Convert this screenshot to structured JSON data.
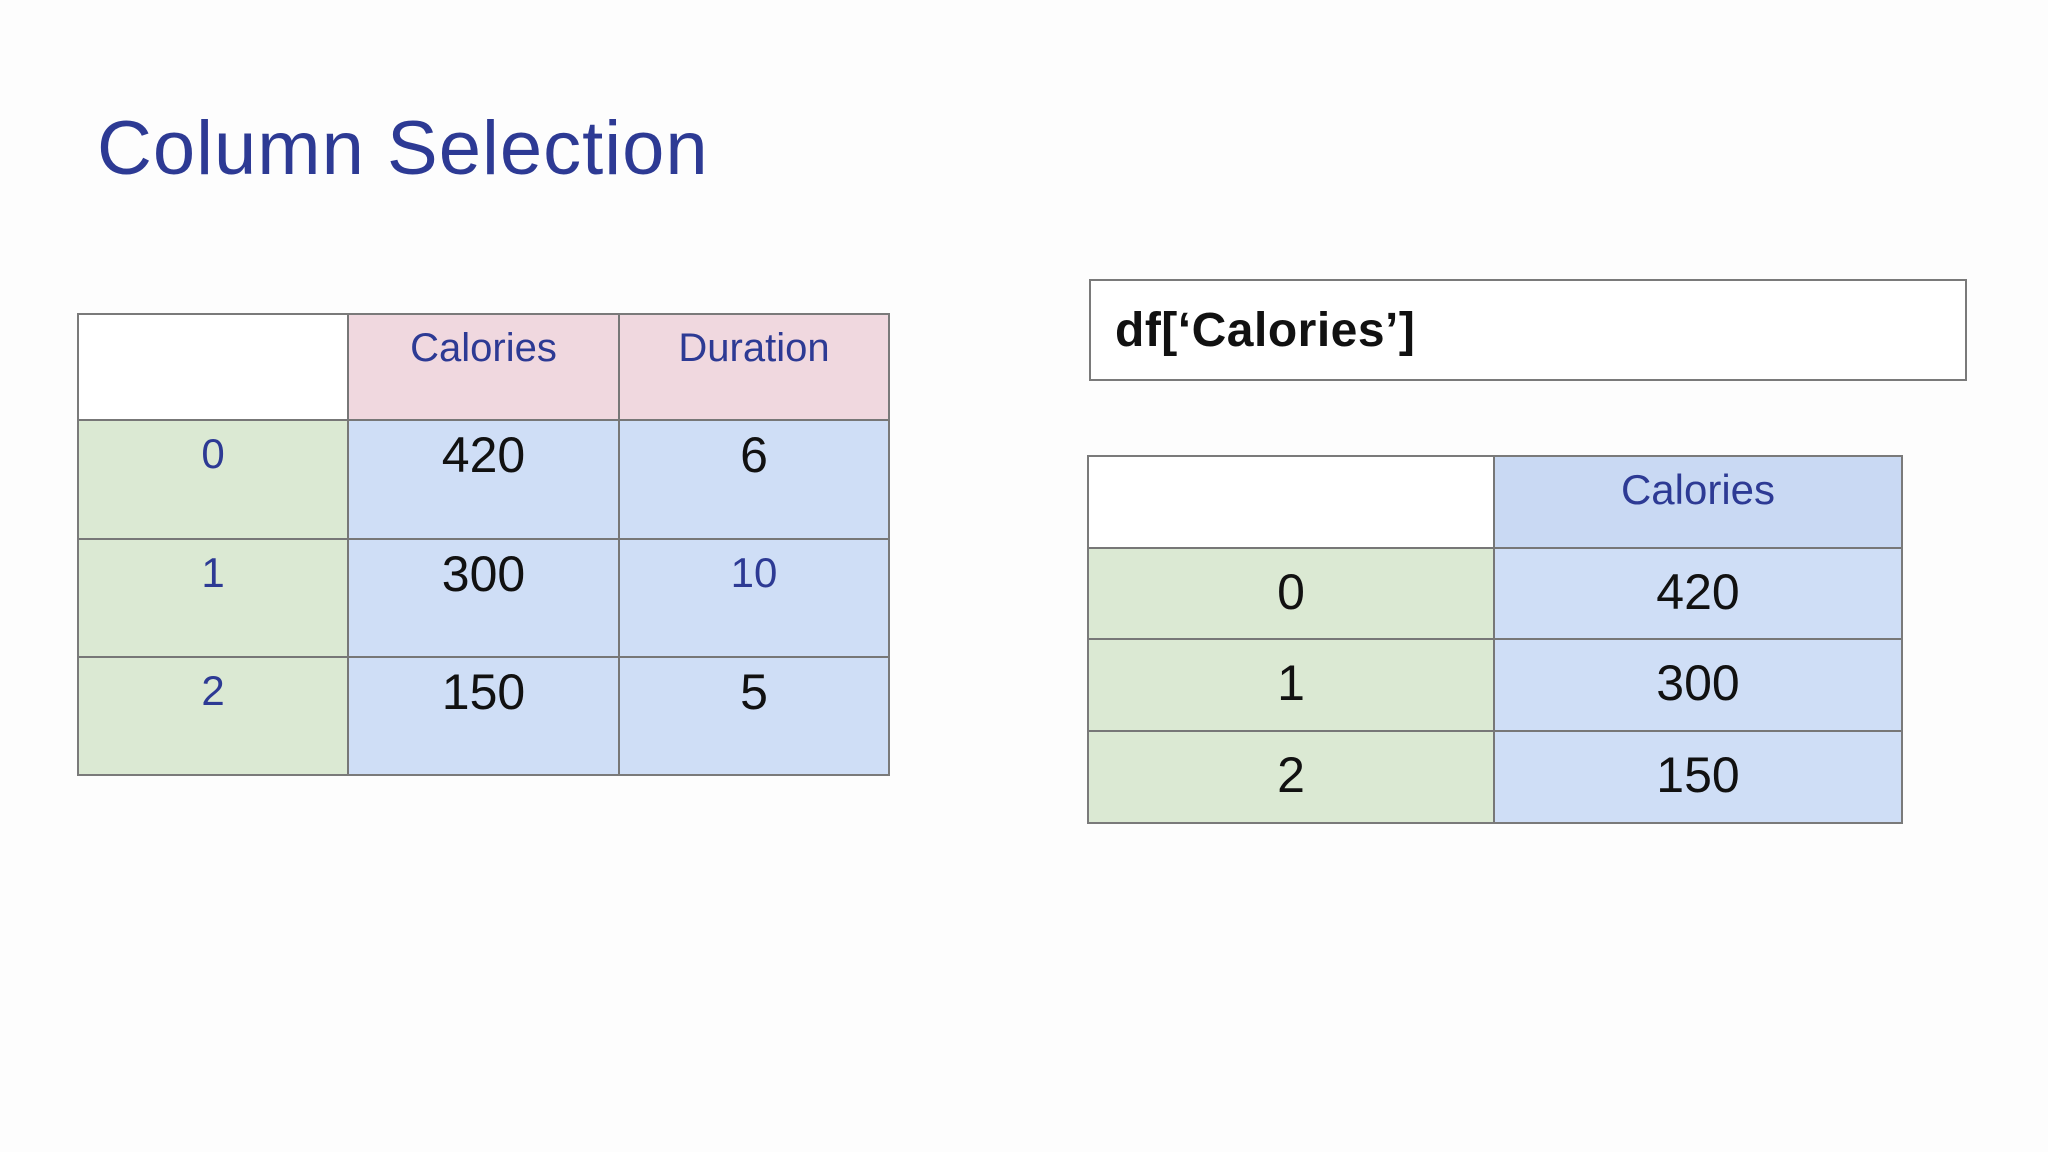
{
  "colors": {
    "navy": "#2d3a94",
    "pink": "#f0d8df",
    "green": "#dbe9d3",
    "blue": "#cfdef6",
    "blue_header": "#c9d9f3",
    "border": "#777777",
    "border_outer": "#7a7a7a"
  },
  "title": "Column Selection",
  "code_box": {
    "text": "df[‘Calories’]"
  },
  "left_table": {
    "headers": [
      "",
      "Calories",
      "Duration"
    ],
    "rows": [
      {
        "index": "0",
        "calories": "420",
        "duration": "6"
      },
      {
        "index": "1",
        "calories": "300",
        "duration": "10"
      },
      {
        "index": "2",
        "calories": "150",
        "duration": "5"
      }
    ]
  },
  "right_table": {
    "headers": [
      "",
      "Calories"
    ],
    "rows": [
      {
        "index": "0",
        "calories": "420"
      },
      {
        "index": "1",
        "calories": "300"
      },
      {
        "index": "2",
        "calories": "150"
      }
    ]
  }
}
